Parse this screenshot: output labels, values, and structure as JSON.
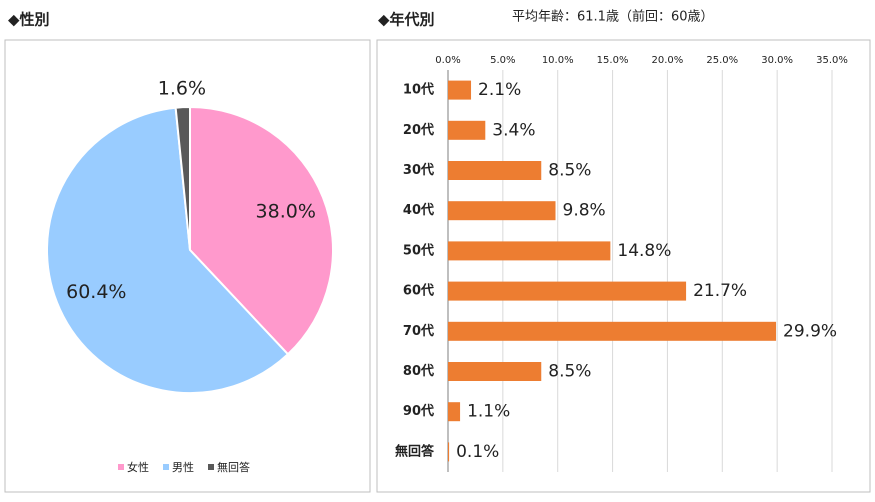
{
  "chart_data": [
    {
      "type": "pie",
      "title": "◆性別",
      "categories": [
        "女性",
        "男性",
        "無回答"
      ],
      "values": [
        38.0,
        60.4,
        1.6
      ],
      "value_labels": [
        "38.0%",
        "60.4%",
        "1.6%"
      ],
      "colors": [
        "#ff99cc",
        "#99ccff",
        "#595959"
      ],
      "legend": "bottom"
    },
    {
      "type": "hbar",
      "title": "◆年代別",
      "subtitle": "平均年齢：61.1歳（前回：60歳）",
      "categories": [
        "10代",
        "20代",
        "30代",
        "40代",
        "50代",
        "60代",
        "70代",
        "80代",
        "90代",
        "無回答"
      ],
      "values": [
        2.1,
        3.4,
        8.5,
        9.8,
        14.8,
        21.7,
        29.9,
        8.5,
        1.1,
        0.1
      ],
      "value_labels": [
        "2.1%",
        "3.4%",
        "8.5%",
        "9.8%",
        "14.8%",
        "21.7%",
        "29.9%",
        "8.5%",
        "1.1%",
        "0.1%"
      ],
      "color": "#ed7d31",
      "xlim": [
        0,
        35
      ],
      "xticks": [
        {
          "value": 0,
          "label": "0.0%"
        },
        {
          "value": 5,
          "label": "5.0%"
        },
        {
          "value": 10,
          "label": "10.0%"
        },
        {
          "value": 15,
          "label": "15.0%"
        },
        {
          "value": 20,
          "label": "20.0%"
        },
        {
          "value": 25,
          "label": "25.0%"
        },
        {
          "value": 30,
          "label": "30.0%"
        },
        {
          "value": 35,
          "label": "35.0%"
        }
      ],
      "grid": true
    }
  ]
}
